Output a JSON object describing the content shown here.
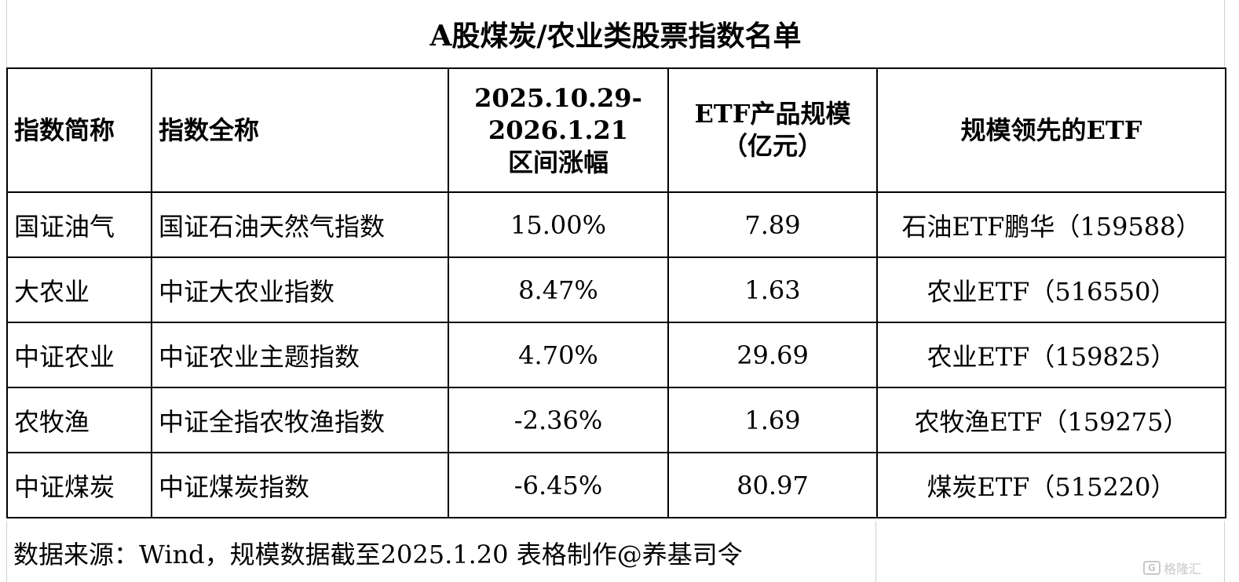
{
  "title": "A股煤炭/农业类股票指数名单",
  "table": {
    "headers": {
      "short_name": "指数简称",
      "full_name": "指数全称",
      "range_line1": "2025.10.29-",
      "range_line2": "2026.1.21",
      "range_line3": "区间涨幅",
      "etf_size_line1": "ETF产品规模",
      "etf_size_line2": "（亿元）",
      "leading_etf": "规模领先的ETF"
    },
    "rows": [
      {
        "short_name": "国证油气",
        "full_name": "国证石油天然气指数",
        "change": "15.00%",
        "etf_size": "7.89",
        "leading_etf": "石油ETF鹏华（159588）"
      },
      {
        "short_name": "大农业",
        "full_name": "中证大农业指数",
        "change": "8.47%",
        "etf_size": "1.63",
        "leading_etf": "农业ETF（516550）"
      },
      {
        "short_name": "中证农业",
        "full_name": "中证农业主题指数",
        "change": "4.70%",
        "etf_size": "29.69",
        "leading_etf": "农业ETF（159825）"
      },
      {
        "short_name": "农牧渔",
        "full_name": "中证全指农牧渔指数",
        "change": "-2.36%",
        "etf_size": "1.69",
        "leading_etf": "农牧渔ETF（159275）"
      },
      {
        "short_name": "中证煤炭",
        "full_name": "中证煤炭指数",
        "change": "-6.45%",
        "etf_size": "80.97",
        "leading_etf": "煤炭ETF（515220）"
      }
    ]
  },
  "footer": {
    "source": "数据来源：Wind，规模数据截至2025.1.20 表格制作@养基司令"
  },
  "watermark": {
    "logo_text": "G",
    "text": "格隆汇"
  }
}
